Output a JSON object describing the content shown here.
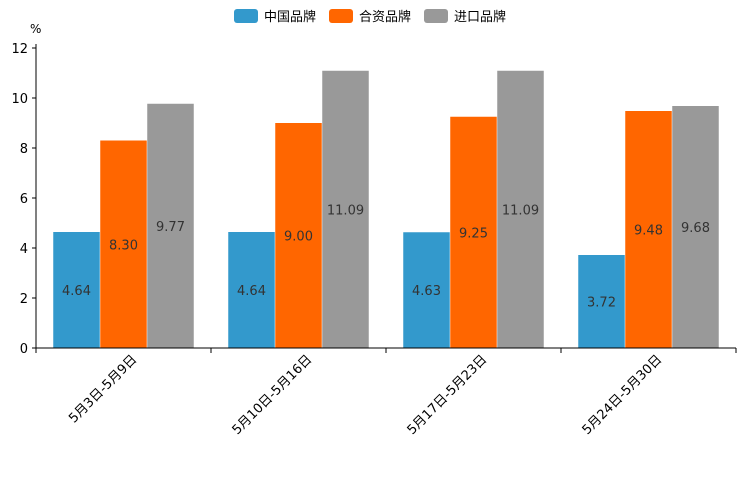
{
  "chart_data": {
    "type": "bar",
    "title": "",
    "xlabel": "",
    "ylabel": "%",
    "ylim": [
      0,
      12
    ],
    "yticks": [
      0,
      2,
      4,
      6,
      8,
      10,
      12
    ],
    "grid": false,
    "legend_position": "top-center",
    "categories": [
      "5月3日-5月9日",
      "5月10日-5月16日",
      "5月17日-5月23日",
      "5月24日-5月30日"
    ],
    "series": [
      {
        "name": "中国品牌",
        "color": "#3399cc",
        "values": [
          4.64,
          4.64,
          4.63,
          3.72
        ],
        "labels": [
          "4.64",
          "4.64",
          "4.63",
          "3.72"
        ]
      },
      {
        "name": "合资品牌",
        "color": "#ff6600",
        "values": [
          8.3,
          9.0,
          9.25,
          9.48
        ],
        "labels": [
          "8.30",
          "9.00",
          "9.25",
          "9.48"
        ]
      },
      {
        "name": "进口品牌",
        "color": "#999999",
        "values": [
          9.77,
          11.09,
          11.09,
          9.68
        ],
        "labels": [
          "9.77",
          "11.09",
          "11.09",
          "9.68"
        ]
      }
    ]
  }
}
